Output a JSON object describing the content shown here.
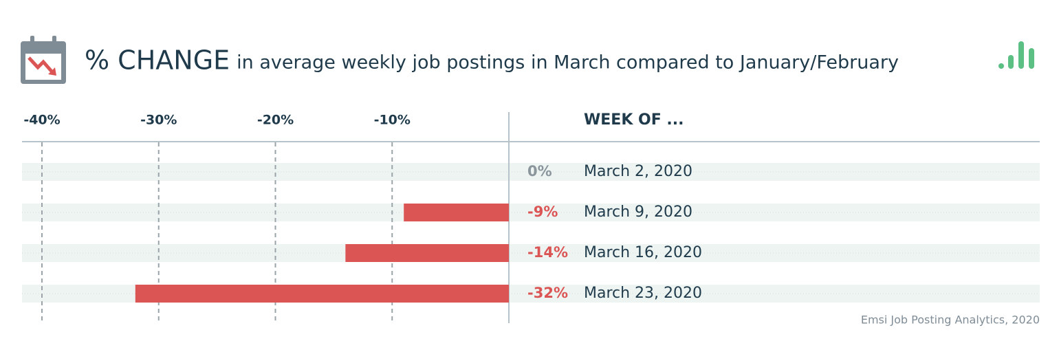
{
  "chart_data": {
    "type": "bar",
    "orientation": "horizontal",
    "title": "% CHANGE",
    "subtitle": "in average weekly job postings in March compared to January/February",
    "category_header": "WEEK OF ...",
    "categories": [
      "March 2, 2020",
      "March 9, 2020",
      "March 16, 2020",
      "March 23, 2020"
    ],
    "values": [
      0,
      -9,
      -14,
      -32
    ],
    "value_labels": [
      "0%",
      "-9%",
      "-14%",
      "-32%"
    ],
    "color": "#dc5555",
    "xlim": [
      -40,
      0
    ],
    "xticks": [
      {
        "value": -40,
        "label": "-40%"
      },
      {
        "value": -30,
        "label": "-30%"
      },
      {
        "value": -20,
        "label": "-20%"
      },
      {
        "value": -10,
        "label": "-10%"
      }
    ],
    "grid": true,
    "source": "Emsi Job Posting Analytics, 2020"
  }
}
